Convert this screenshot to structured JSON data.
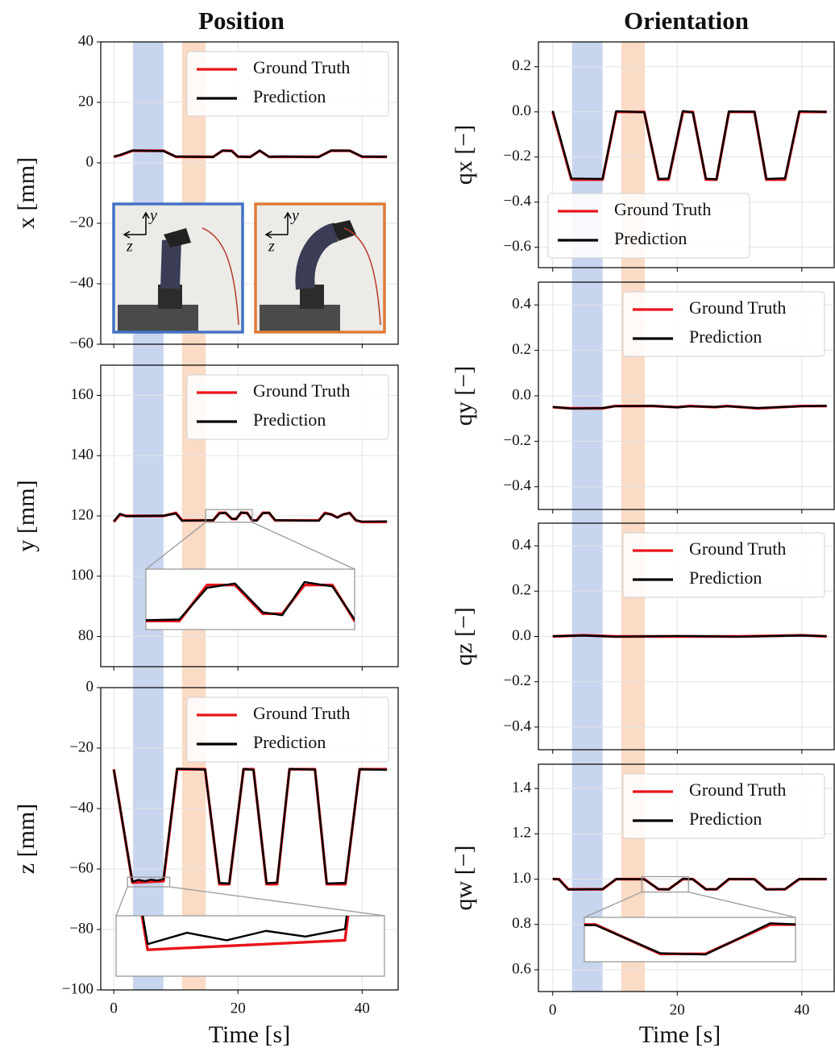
{
  "chart_data": [
    {
      "type": "line",
      "title": "Position",
      "ylabel": "x [mm]",
      "legend": "upper right",
      "grid": true,
      "xlim": [
        -2.1,
        45.8
      ],
      "xticks": [
        0,
        20,
        40
      ],
      "ylim": [
        -60,
        40
      ],
      "yticks": [
        {
          "value": -60,
          "label": "−60"
        },
        {
          "value": -40,
          "label": "−40"
        },
        {
          "value": -20,
          "label": "−20"
        },
        0,
        20,
        40
      ],
      "spans": [
        {
          "start": 3.1,
          "end": 8,
          "color": "#c8d5ee"
        },
        {
          "start": 11,
          "end": 14.8,
          "color": "#fadbc6"
        }
      ],
      "x": [
        0,
        1,
        3,
        8,
        10,
        16,
        17.5,
        19,
        20,
        22,
        23.5,
        25,
        27,
        33,
        35,
        38,
        40,
        44
      ],
      "series": [
        {
          "name": "Ground Truth",
          "color": "#e8141b",
          "values": [
            2,
            2.5,
            4,
            4,
            2,
            2,
            4,
            4,
            2,
            2,
            4,
            2,
            2,
            2,
            4,
            4,
            2,
            2
          ]
        },
        {
          "name": "Prediction",
          "color": "#000000",
          "values": [
            2.1,
            2.6,
            4.1,
            3.9,
            2.1,
            1.9,
            4.1,
            3.9,
            2.1,
            1.9,
            4.1,
            2.0,
            2.1,
            1.9,
            4.1,
            4.0,
            2.1,
            2.0
          ]
        }
      ],
      "image_insets": [
        {
          "border_color": "#4472c4",
          "axis_labels": [
            "y",
            "z"
          ]
        },
        {
          "border_color": "#e07b39",
          "axis_labels": [
            "y",
            "z"
          ]
        }
      ]
    },
    {
      "type": "line",
      "ylabel": "y [mm]",
      "legend": "upper right",
      "grid": true,
      "xlim": [
        -2.1,
        45.8
      ],
      "xticks": [
        0,
        20,
        40
      ],
      "ylim": [
        70,
        170
      ],
      "yticks": [
        80,
        100,
        120,
        140,
        160
      ],
      "spans": [
        {
          "start": 3.1,
          "end": 8,
          "color": "#c8d5ee"
        },
        {
          "start": 11,
          "end": 14.8,
          "color": "#fadbc6"
        }
      ],
      "x": [
        0,
        1,
        2,
        8,
        10,
        11,
        16,
        17,
        18,
        19,
        19.7,
        20.5,
        21.5,
        22.3,
        23,
        24,
        25,
        26,
        33,
        34,
        35,
        36,
        37,
        38,
        39,
        40,
        44
      ],
      "series": [
        {
          "name": "Ground Truth",
          "color": "#e8141b",
          "values": [
            118,
            120.5,
            120,
            120,
            121,
            118.5,
            118.5,
            121,
            121,
            119,
            119,
            121,
            121,
            118.5,
            118.5,
            121,
            121,
            118.5,
            118.5,
            121,
            120.5,
            119.5,
            120.5,
            121,
            118.5,
            118,
            118
          ]
        },
        {
          "name": "Prediction",
          "color": "#000000",
          "values": [
            118.2,
            120.7,
            119.9,
            120.1,
            120.8,
            118.4,
            118.6,
            120.8,
            121.1,
            119.1,
            118.9,
            121.2,
            120.9,
            118.6,
            118.4,
            120.9,
            121.1,
            118.6,
            118.4,
            120.8,
            120.6,
            119.4,
            120.6,
            120.9,
            118.6,
            118.1,
            118.2
          ]
        }
      ],
      "zoom": {
        "xlim": [
          14.8,
          22.3
        ],
        "ylim": [
          117.9,
          122.1
        ]
      }
    },
    {
      "type": "line",
      "ylabel": "z [mm]",
      "xlabel": "Time [s]",
      "legend": "upper right",
      "grid": true,
      "xlim": [
        -2.1,
        45.8
      ],
      "xticks": [
        0,
        20,
        40
      ],
      "ylim": [
        -100,
        0
      ],
      "yticks": [
        {
          "value": -100,
          "label": "−100"
        },
        {
          "value": -80,
          "label": "−80"
        },
        {
          "value": -60,
          "label": "−60"
        },
        {
          "value": -40,
          "label": "−40"
        },
        {
          "value": -20,
          "label": "−20"
        },
        0
      ],
      "spans": [
        {
          "start": 3.1,
          "end": 8,
          "color": "#c8d5ee"
        },
        {
          "start": 11,
          "end": 14.8,
          "color": "#fadbc6"
        }
      ],
      "x": [
        0,
        3,
        4,
        5,
        6,
        7,
        8,
        10.2,
        14.7,
        17,
        18.6,
        20.9,
        22.5,
        24.6,
        26.3,
        28.3,
        32.4,
        34.3,
        37.3,
        39.6,
        44
      ],
      "series": [
        {
          "name": "Ground Truth",
          "color": "#e8141b",
          "values": [
            -27,
            -64.5,
            -64.4,
            -64.3,
            -64.2,
            -64.1,
            -64,
            -27,
            -27,
            -65,
            -65,
            -27,
            -27,
            -65,
            -65,
            -27,
            -27,
            -65,
            -65,
            -27,
            -27
          ]
        },
        {
          "name": "Prediction",
          "color": "#000000",
          "values": [
            -27.2,
            -64.2,
            -63.6,
            -64,
            -63.5,
            -63.8,
            -63.4,
            -26.8,
            -27.1,
            -64.6,
            -64.8,
            -26.9,
            -27.2,
            -64.7,
            -64.5,
            -26.9,
            -27.1,
            -64.8,
            -64.6,
            -27,
            -27.2
          ]
        }
      ],
      "zoom": {
        "xlim": [
          2.2,
          9.0
        ],
        "ylim": [
          -65.9,
          -62.7
        ]
      }
    },
    {
      "type": "line",
      "title": "Orientation",
      "ylabel": "qx [−]",
      "legend": "lower left",
      "grid": true,
      "xlim": [
        -2.3,
        45.2
      ],
      "xticks": [
        0,
        20,
        40
      ],
      "ylim": [
        -0.69,
        0.31
      ],
      "yticks": [
        {
          "value": -0.6,
          "label": "−0.6"
        },
        {
          "value": -0.4,
          "label": "−0.4"
        },
        {
          "value": -0.2,
          "label": "−0.2"
        },
        {
          "value": 0,
          "label": "0.0"
        },
        0.2
      ],
      "spans": [
        {
          "start": 3.1,
          "end": 8,
          "color": "#c8d5ee"
        },
        {
          "start": 11,
          "end": 14.8,
          "color": "#fadbc6"
        }
      ],
      "x": [
        0,
        3,
        8,
        10.2,
        14.7,
        17,
        18.6,
        20.9,
        22.5,
        24.6,
        26.3,
        28.3,
        32.4,
        34.3,
        37.3,
        39.6,
        44
      ],
      "series": [
        {
          "name": "Ground Truth",
          "color": "#e8141b",
          "values": [
            0,
            -0.3,
            -0.3,
            0,
            0,
            -0.3,
            -0.3,
            0,
            0,
            -0.3,
            -0.3,
            0,
            0,
            -0.3,
            -0.3,
            0,
            0
          ]
        },
        {
          "name": "Prediction",
          "color": "#000000",
          "values": [
            0.005,
            -0.295,
            -0.297,
            0.003,
            -0.002,
            -0.297,
            -0.295,
            0.004,
            -0.003,
            -0.296,
            -0.298,
            0.002,
            0.001,
            -0.297,
            -0.294,
            0.003,
            0
          ]
        }
      ]
    },
    {
      "type": "line",
      "ylabel": "qy [−]",
      "legend": "upper right",
      "grid": true,
      "xlim": [
        -2.3,
        45.2
      ],
      "xticks": [
        0,
        20,
        40
      ],
      "ylim": [
        -0.5,
        0.5
      ],
      "yticks": [
        {
          "value": -0.4,
          "label": "−0.4"
        },
        {
          "value": -0.2,
          "label": "−0.2"
        },
        {
          "value": 0,
          "label": "0.0"
        },
        0.2,
        0.4
      ],
      "spans": [
        {
          "start": 3.1,
          "end": 8,
          "color": "#c8d5ee"
        },
        {
          "start": 11,
          "end": 14.8,
          "color": "#fadbc6"
        }
      ],
      "x": [
        0,
        3,
        8,
        10,
        16,
        20,
        22,
        26,
        28,
        33,
        40,
        44
      ],
      "series": [
        {
          "name": "Ground Truth",
          "color": "#e8141b",
          "values": [
            -0.05,
            -0.055,
            -0.055,
            -0.045,
            -0.045,
            -0.05,
            -0.045,
            -0.05,
            -0.045,
            -0.055,
            -0.045,
            -0.045
          ]
        },
        {
          "name": "Prediction",
          "color": "#000000",
          "values": [
            -0.049,
            -0.056,
            -0.054,
            -0.046,
            -0.044,
            -0.051,
            -0.046,
            -0.049,
            -0.046,
            -0.054,
            -0.046,
            -0.044
          ]
        }
      ]
    },
    {
      "type": "line",
      "ylabel": "qz [−]",
      "legend": "upper right",
      "grid": true,
      "xlim": [
        -2.3,
        45.2
      ],
      "xticks": [
        0,
        20,
        40
      ],
      "ylim": [
        -0.5,
        0.5
      ],
      "yticks": [
        {
          "value": -0.4,
          "label": "−0.4"
        },
        {
          "value": -0.2,
          "label": "−0.2"
        },
        {
          "value": 0,
          "label": "0.0"
        },
        0.2,
        0.4
      ],
      "spans": [
        {
          "start": 3.1,
          "end": 8,
          "color": "#c8d5ee"
        },
        {
          "start": 11,
          "end": 14.8,
          "color": "#fadbc6"
        }
      ],
      "x": [
        0,
        5,
        10,
        20,
        30,
        40,
        44
      ],
      "series": [
        {
          "name": "Ground Truth",
          "color": "#e8141b",
          "values": [
            0,
            0.005,
            0,
            0,
            0,
            0.005,
            0
          ]
        },
        {
          "name": "Prediction",
          "color": "#000000",
          "values": [
            0.001,
            0.004,
            -0.001,
            0.002,
            -0.001,
            0.004,
            0.001
          ]
        }
      ]
    },
    {
      "type": "line",
      "ylabel": "qw [−]",
      "xlabel": "Time [s]",
      "legend": "upper right",
      "grid": true,
      "xlim": [
        -2.3,
        45.2
      ],
      "xticks": [
        0,
        20,
        40
      ],
      "ylim": [
        0.504,
        1.507
      ],
      "yticks": [
        0.6,
        0.8,
        {
          "value": 1,
          "label": "1.0"
        },
        1.2,
        1.4
      ],
      "spans": [
        {
          "start": 3.1,
          "end": 8,
          "color": "#c8d5ee"
        },
        {
          "start": 11,
          "end": 14.8,
          "color": "#fadbc6"
        }
      ],
      "x": [
        0,
        1,
        2.5,
        8,
        10.2,
        14.7,
        17,
        18.6,
        20.9,
        22.5,
        24.6,
        26.3,
        28.3,
        32.4,
        34.3,
        37.3,
        39.6,
        44
      ],
      "series": [
        {
          "name": "Ground Truth",
          "color": "#e8141b",
          "values": [
            1,
            1,
            0.955,
            0.955,
            1,
            1,
            0.955,
            0.955,
            1,
            1,
            0.955,
            0.955,
            1,
            1,
            0.955,
            0.955,
            1,
            1
          ]
        },
        {
          "name": "Prediction",
          "color": "#000000",
          "values": [
            1.002,
            0.998,
            0.954,
            0.956,
            1.001,
            0.999,
            0.956,
            0.954,
            1.002,
            0.999,
            0.955,
            0.956,
            1.001,
            0.999,
            0.954,
            0.956,
            1.001,
            1
          ]
        }
      ],
      "zoom": {
        "xlim": [
          14.3,
          21.8
        ],
        "ylim": [
          0.943,
          1.011
        ]
      }
    }
  ]
}
